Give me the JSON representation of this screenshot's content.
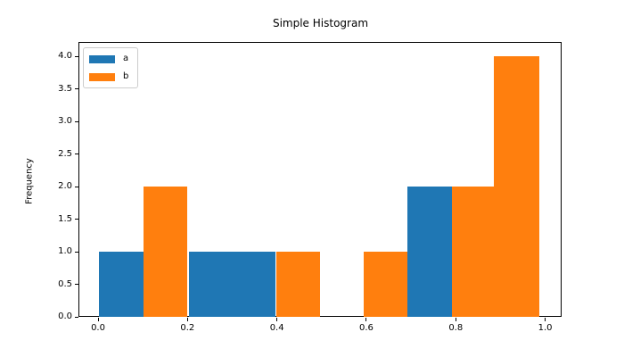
{
  "chart_data": {
    "type": "bar",
    "subtype": "histogram",
    "title": "Simple Histogram",
    "xlabel": "",
    "ylabel": "Frequency",
    "xlim": [
      -0.0419,
      1.0367
    ],
    "ylim": [
      0,
      4.2055
    ],
    "grid": false,
    "xticks": [
      {
        "value": 0.0,
        "label": "0.0"
      },
      {
        "value": 0.2,
        "label": "0.2"
      },
      {
        "value": 0.4,
        "label": "0.4"
      },
      {
        "value": 0.6,
        "label": "0.6"
      },
      {
        "value": 0.8,
        "label": "0.8"
      },
      {
        "value": 1.0,
        "label": "1.0"
      }
    ],
    "yticks": [
      {
        "value": 0.0,
        "label": "0.0"
      },
      {
        "value": 0.5,
        "label": "0.5"
      },
      {
        "value": 1.0,
        "label": "1.0"
      },
      {
        "value": 1.5,
        "label": "1.5"
      },
      {
        "value": 2.0,
        "label": "2.0"
      },
      {
        "value": 2.5,
        "label": "2.5"
      },
      {
        "value": 3.0,
        "label": "3.0"
      },
      {
        "value": 3.5,
        "label": "3.5"
      },
      {
        "value": 4.0,
        "label": "4.0"
      }
    ],
    "legend": {
      "position": "upper left",
      "entries": [
        {
          "label": "a",
          "color": "#1f77b4"
        },
        {
          "label": "b",
          "color": "#ff7f0e"
        }
      ]
    },
    "series": [
      {
        "name": "a",
        "color": "#1f77b4",
        "bars": [
          {
            "x0": 0.002,
            "x1": 0.101,
            "height": 1
          },
          {
            "x0": 0.203,
            "x1": 0.299,
            "height": 1
          },
          {
            "x0": 0.299,
            "x1": 0.396,
            "height": 1
          },
          {
            "x0": 0.692,
            "x1": 0.791,
            "height": 2
          }
        ]
      },
      {
        "name": "b",
        "color": "#ff7f0e",
        "bars": [
          {
            "x0": 0.102,
            "x1": 0.2,
            "height": 2
          },
          {
            "x0": 0.398,
            "x1": 0.497,
            "height": 1
          },
          {
            "x0": 0.594,
            "x1": 0.692,
            "height": 1
          },
          {
            "x0": 0.791,
            "x1": 0.886,
            "height": 2
          },
          {
            "x0": 0.886,
            "x1": 0.987,
            "height": 4
          }
        ]
      }
    ]
  }
}
